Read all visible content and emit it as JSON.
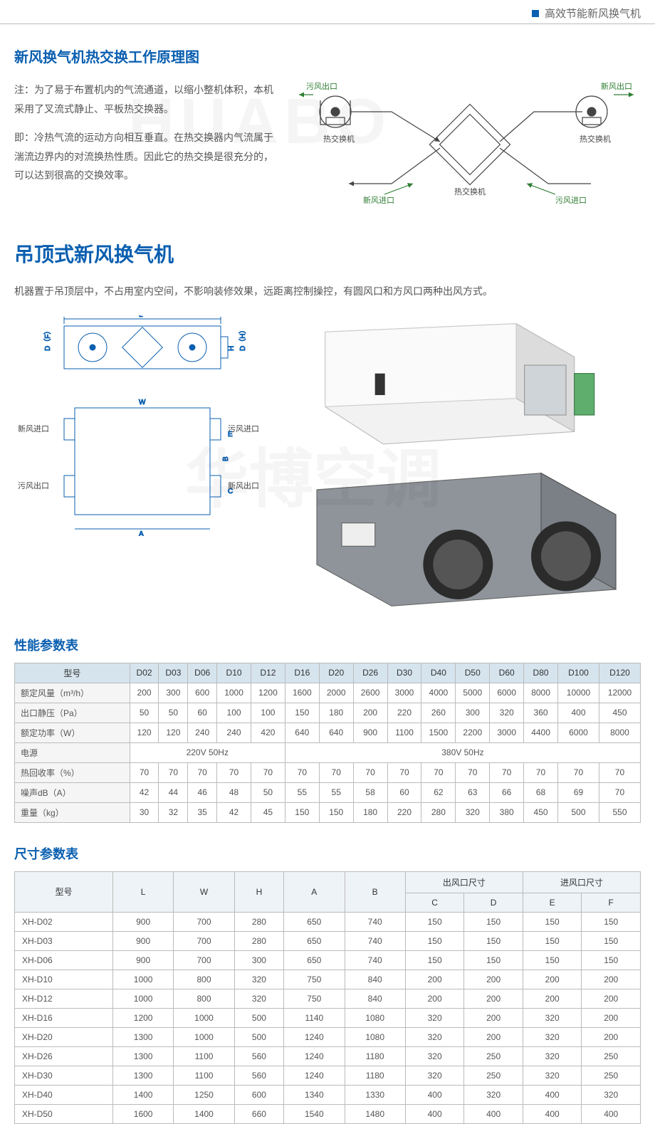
{
  "topbar": {
    "text": "高效节能新风换气机"
  },
  "section1": {
    "title": "新风换气机热交换工作原理图",
    "para1": "注：为了易于布置机内的气流通道，以缩小整机体积，本机采用了叉流式静止、平板热交换器。",
    "para2": "即：冷热气流的运动方向相互垂直。在热交换器内气流属于湍流边界内的对流换热性质。因此它的热交换是很充分的，可以达到很高的交换效率。"
  },
  "diagram": {
    "labels": {
      "wfck": "污风出口",
      "xfck": "新风出口",
      "rjhj_l": "热交换机",
      "rjhj_r": "热交换机",
      "rjhq": "热交换机",
      "xfjk": "新风进口",
      "wfjk": "污风进口"
    },
    "colors": {
      "green": "#2e7d32",
      "blue": "#0a5fb0",
      "line": "#444"
    }
  },
  "section2": {
    "title": "吊顶式新风换气机",
    "para": "机器置于吊顶层中，不占用室内空间，不影响装修效果，远距离控制操控，有圆风口和方风口两种出风方式。",
    "tech_labels": {
      "xfjk": "新风进口",
      "wfck": "污风出口",
      "wfjk": "污风进口",
      "xfck": "新风出口",
      "L": "L",
      "A": "A",
      "B": "B",
      "W": "W",
      "C": "C",
      "E": "E",
      "H": "H",
      "DF": "D（F）",
      "DH": "D（H）"
    }
  },
  "watermark1": "HUABO",
  "watermark2": "华博空调",
  "perf_table": {
    "title": "性能参数表",
    "col_header_first": "型号",
    "models": [
      "D02",
      "D03",
      "D06",
      "D10",
      "D12",
      "D16",
      "D20",
      "D26",
      "D30",
      "D40",
      "D50",
      "D60",
      "D80",
      "D100",
      "D120"
    ],
    "rows": [
      {
        "label": "额定风量（m³/h）",
        "values": [
          "200",
          "300",
          "600",
          "1000",
          "1200",
          "1600",
          "2000",
          "2600",
          "3000",
          "4000",
          "5000",
          "6000",
          "8000",
          "10000",
          "12000"
        ]
      },
      {
        "label": "出口静压（Pa）",
        "values": [
          "50",
          "50",
          "60",
          "100",
          "100",
          "150",
          "180",
          "200",
          "220",
          "260",
          "300",
          "320",
          "360",
          "400",
          "450"
        ]
      },
      {
        "label": "额定功率（W）",
        "values": [
          "120",
          "120",
          "240",
          "240",
          "420",
          "640",
          "640",
          "900",
          "1100",
          "1500",
          "2200",
          "3000",
          "4400",
          "6000",
          "8000"
        ]
      },
      {
        "label": "电源",
        "merged": [
          {
            "span": 5,
            "text": "220V 50Hz"
          },
          {
            "span": 10,
            "text": "380V 50Hz"
          }
        ]
      },
      {
        "label": "热回收率（%）",
        "values": [
          "70",
          "70",
          "70",
          "70",
          "70",
          "70",
          "70",
          "70",
          "70",
          "70",
          "70",
          "70",
          "70",
          "70",
          "70"
        ]
      },
      {
        "label": "噪声dB（A）",
        "values": [
          "42",
          "44",
          "46",
          "48",
          "50",
          "55",
          "55",
          "58",
          "60",
          "62",
          "63",
          "66",
          "68",
          "69",
          "70"
        ]
      },
      {
        "label": "重量（kg）",
        "values": [
          "30",
          "32",
          "35",
          "42",
          "45",
          "150",
          "150",
          "180",
          "220",
          "280",
          "320",
          "380",
          "450",
          "500",
          "550"
        ]
      }
    ]
  },
  "dim_table": {
    "title": "尺寸参数表",
    "header": {
      "model": "型号",
      "L": "L",
      "W": "W",
      "H": "H",
      "A": "A",
      "B": "B",
      "out": "出风口尺寸",
      "in": "进风口尺寸",
      "C": "C",
      "D": "D",
      "E": "E",
      "F": "F"
    },
    "rows": [
      [
        "XH-D02",
        "900",
        "700",
        "280",
        "650",
        "740",
        "150",
        "150",
        "150",
        "150"
      ],
      [
        "XH-D03",
        "900",
        "700",
        "280",
        "650",
        "740",
        "150",
        "150",
        "150",
        "150"
      ],
      [
        "XH-D06",
        "900",
        "700",
        "300",
        "650",
        "740",
        "150",
        "150",
        "150",
        "150"
      ],
      [
        "XH-D10",
        "1000",
        "800",
        "320",
        "750",
        "840",
        "200",
        "200",
        "200",
        "200"
      ],
      [
        "XH-D12",
        "1000",
        "800",
        "320",
        "750",
        "840",
        "200",
        "200",
        "200",
        "200"
      ],
      [
        "XH-D16",
        "1200",
        "1000",
        "500",
        "1140",
        "1080",
        "320",
        "200",
        "320",
        "200"
      ],
      [
        "XH-D20",
        "1300",
        "1000",
        "500",
        "1240",
        "1080",
        "320",
        "200",
        "320",
        "200"
      ],
      [
        "XH-D26",
        "1300",
        "1100",
        "560",
        "1240",
        "1180",
        "320",
        "250",
        "320",
        "250"
      ],
      [
        "XH-D30",
        "1300",
        "1100",
        "560",
        "1240",
        "1180",
        "320",
        "250",
        "320",
        "250"
      ],
      [
        "XH-D40",
        "1400",
        "1250",
        "600",
        "1340",
        "1330",
        "400",
        "320",
        "400",
        "320"
      ],
      [
        "XH-D50",
        "1600",
        "1400",
        "660",
        "1540",
        "1480",
        "400",
        "400",
        "400",
        "400"
      ]
    ]
  }
}
